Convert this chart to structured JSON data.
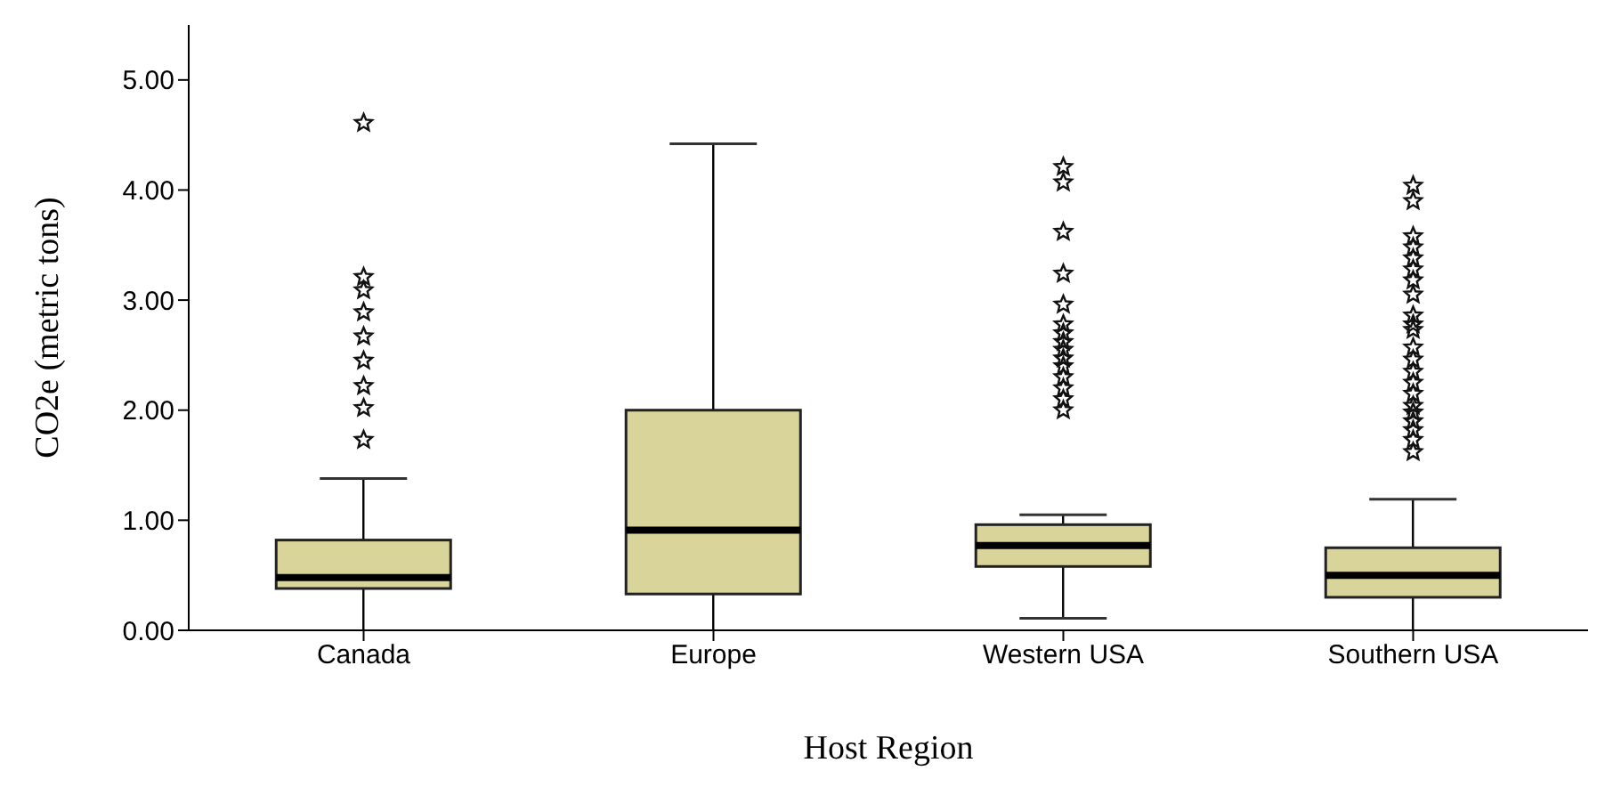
{
  "chart_data": {
    "type": "box",
    "xlabel": "Host Region",
    "ylabel": "CO2e (metric tons)",
    "categories": [
      "Canada",
      "Europe",
      "Western USA",
      "Southern USA"
    ],
    "color": "#d9d59a",
    "marker": "star",
    "boxes": [
      {
        "low": 0,
        "q1": 0.38,
        "median": 0.48,
        "q3": 0.82,
        "high": 1.38,
        "outliers": [
          4.61,
          3.21,
          3.09,
          2.89,
          2.67,
          2.45,
          2.22,
          2.02,
          1.73
        ]
      },
      {
        "low": 0,
        "q1": 0.33,
        "median": 0.91,
        "q3": 2.0,
        "high": 4.42
      },
      {
        "low": 0.11,
        "q1": 0.58,
        "median": 0.77,
        "q3": 0.96,
        "high": 1.05,
        "outliers": [
          4.21,
          4.07,
          3.62,
          3.24,
          2.96,
          2.78,
          2.7,
          2.62,
          2.55,
          2.47,
          2.4,
          2.3,
          2.2,
          2.1,
          2.0
        ]
      },
      {
        "low": 0,
        "q1": 0.3,
        "median": 0.5,
        "q3": 0.75,
        "high": 1.19,
        "outliers": [
          4.04,
          3.9,
          3.58,
          3.48,
          3.38,
          3.28,
          3.18,
          3.05,
          2.86,
          2.78,
          2.73,
          2.57,
          2.46,
          2.35,
          2.25,
          2.15,
          2.04,
          1.98,
          1.9,
          1.82,
          1.73,
          1.62
        ]
      }
    ],
    "ylim": [
      0,
      5.5
    ],
    "yticks": [
      {
        "value": 0,
        "label": "0.00"
      },
      {
        "value": 1,
        "label": "1.00"
      },
      {
        "value": 2,
        "label": "2.00"
      },
      {
        "value": 3,
        "label": "3.00"
      },
      {
        "value": 4,
        "label": "4.00"
      },
      {
        "value": 5,
        "label": "5.00"
      }
    ]
  }
}
